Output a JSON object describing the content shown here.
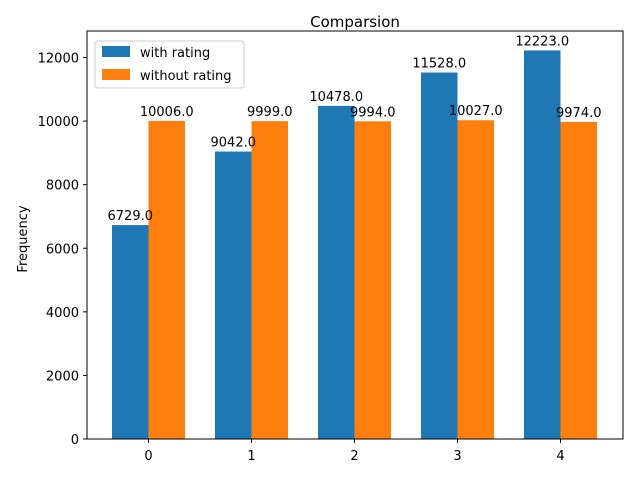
{
  "chart_data": {
    "type": "bar",
    "title": "Comparsion",
    "xlabel": "",
    "ylabel": "Frequency",
    "categories": [
      "0",
      "1",
      "2",
      "3",
      "4"
    ],
    "series": [
      {
        "name": "with rating",
        "values": [
          6729.0,
          9042.0,
          10478.0,
          11528.0,
          12223.0
        ],
        "color": "#1f77b4"
      },
      {
        "name": "without rating",
        "values": [
          10006.0,
          9999.0,
          9994.0,
          10027.0,
          9974.0
        ],
        "color": "#ff7f0e"
      }
    ],
    "data_labels": [
      [
        "6729.0",
        "9042.0",
        "10478.0",
        "11528.0",
        "12223.0"
      ],
      [
        "10006.0",
        "9999.0",
        "9994.0",
        "10027.0",
        "9974.0"
      ]
    ],
    "yticks": [
      0,
      2000,
      4000,
      6000,
      8000,
      10000,
      12000
    ],
    "ytick_labels": [
      "0",
      "2000",
      "4000",
      "6000",
      "8000",
      "10000",
      "12000"
    ],
    "ylim": [
      0,
      12834
    ],
    "grid": false,
    "legend_position": "upper-left"
  }
}
